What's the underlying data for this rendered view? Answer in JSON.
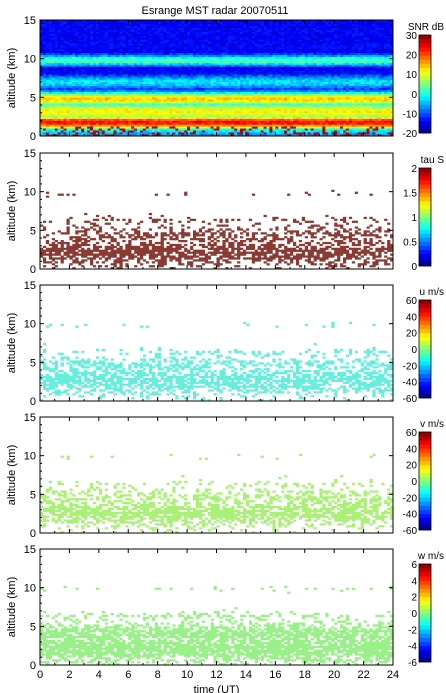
{
  "title": "Esrange MST radar 20070511",
  "chart_data": [
    {
      "type": "heatmap",
      "title": "Esrange MST radar 20070511",
      "ylabel": "altitude (km)",
      "xlim": [
        0,
        24
      ],
      "ylim": [
        0,
        15
      ],
      "yticks": [
        0,
        5,
        10,
        15
      ],
      "colorbar_label": "SNR dB",
      "colorbar_range": [
        -20,
        30
      ],
      "colorbar_ticks": [
        -20,
        -10,
        0,
        10,
        20,
        30
      ],
      "colormap": "jet",
      "cell_color": "jet",
      "fill": "full",
      "layers": [
        {
          "alt": 0.8,
          "value": 0.3,
          "thick": 1.2,
          "density": 1.0
        },
        {
          "alt": 1.8,
          "value": 0.82,
          "thick": 1.0,
          "density": 1.0
        },
        {
          "alt": 3.2,
          "value": 0.58,
          "thick": 1.4,
          "density": 1.0
        },
        {
          "alt": 4.8,
          "value": 0.62,
          "thick": 1.0,
          "density": 1.0
        },
        {
          "alt": 7.0,
          "value": 0.3,
          "thick": 1.0,
          "density": 1.0
        },
        {
          "alt": 9.8,
          "value": 0.4,
          "thick": 0.8,
          "density": 1.0
        }
      ]
    },
    {
      "type": "heatmap",
      "ylabel": "altitude (km)",
      "xlim": [
        0,
        24
      ],
      "ylim": [
        0,
        15
      ],
      "yticks": [
        0,
        5,
        10,
        15
      ],
      "colorbar_label": "tau S",
      "colorbar_range": [
        0,
        2
      ],
      "colorbar_ticks": [
        0,
        0.5,
        1,
        1.5,
        2
      ],
      "colormap": "jet",
      "cell_color": "#8a3a32",
      "fill": "sparse",
      "layers": [
        {
          "alt": 2.2,
          "value": 1.8,
          "thick": 1.6,
          "density": 0.75
        },
        {
          "alt": 4.2,
          "value": 1.8,
          "thick": 1.4,
          "density": 0.45
        },
        {
          "alt": 6.3,
          "value": 1.8,
          "thick": 0.4,
          "density": 0.25
        },
        {
          "alt": 9.8,
          "value": 1.8,
          "thick": 0.3,
          "density": 0.08
        }
      ]
    },
    {
      "type": "heatmap",
      "ylabel": "altitude (km)",
      "xlim": [
        0,
        24
      ],
      "ylim": [
        0,
        15
      ],
      "yticks": [
        0,
        5,
        10,
        15
      ],
      "colorbar_label": "u m/s",
      "colorbar_range": [
        -60,
        60
      ],
      "colorbar_ticks": [
        -60,
        -40,
        -20,
        0,
        20,
        40,
        60
      ],
      "colormap": "jet",
      "cell_color": "#66eedd",
      "fill": "sparse",
      "layers": [
        {
          "alt": 2.6,
          "value": -25,
          "thick": 1.6,
          "density": 0.75
        },
        {
          "alt": 4.4,
          "value": -25,
          "thick": 1.4,
          "density": 0.45
        },
        {
          "alt": 6.3,
          "value": -25,
          "thick": 0.4,
          "density": 0.25
        },
        {
          "alt": 9.8,
          "value": -25,
          "thick": 0.3,
          "density": 0.08
        }
      ]
    },
    {
      "type": "heatmap",
      "ylabel": "altitude (km)",
      "xlim": [
        0,
        24
      ],
      "ylim": [
        0,
        15
      ],
      "yticks": [
        0,
        5,
        10,
        15
      ],
      "colorbar_label": "v m/s",
      "colorbar_range": [
        -60,
        60
      ],
      "colorbar_ticks": [
        -60,
        -40,
        -20,
        0,
        20,
        40,
        60
      ],
      "colormap": "jet",
      "cell_color": "#aaf077",
      "fill": "sparse",
      "layers": [
        {
          "alt": 2.6,
          "value": 5,
          "thick": 1.6,
          "density": 0.75
        },
        {
          "alt": 4.4,
          "value": 5,
          "thick": 1.4,
          "density": 0.45
        },
        {
          "alt": 6.3,
          "value": 5,
          "thick": 0.4,
          "density": 0.25
        },
        {
          "alt": 9.8,
          "value": 5,
          "thick": 0.3,
          "density": 0.08
        }
      ]
    },
    {
      "type": "heatmap",
      "ylabel": "altitude (km)",
      "xlabel": "time (UT)",
      "xlim": [
        0,
        24
      ],
      "ylim": [
        0,
        15
      ],
      "xticks": [
        0,
        2,
        4,
        6,
        8,
        10,
        12,
        14,
        16,
        18,
        20,
        22,
        24
      ],
      "yticks": [
        0,
        5,
        10,
        15
      ],
      "colorbar_label": "w m/s",
      "colorbar_range": [
        -6,
        6
      ],
      "colorbar_ticks": [
        -6,
        -4,
        -2,
        0,
        2,
        4,
        6
      ],
      "colormap": "jet",
      "cell_color": "#99f088",
      "fill": "sparse",
      "layers": [
        {
          "alt": 2.2,
          "value": 0,
          "thick": 1.8,
          "density": 0.9
        },
        {
          "alt": 4.0,
          "value": 0,
          "thick": 1.4,
          "density": 0.8
        },
        {
          "alt": 6.4,
          "value": 0,
          "thick": 0.4,
          "density": 0.3
        },
        {
          "alt": 9.8,
          "value": 0,
          "thick": 0.3,
          "density": 0.1
        }
      ]
    }
  ]
}
